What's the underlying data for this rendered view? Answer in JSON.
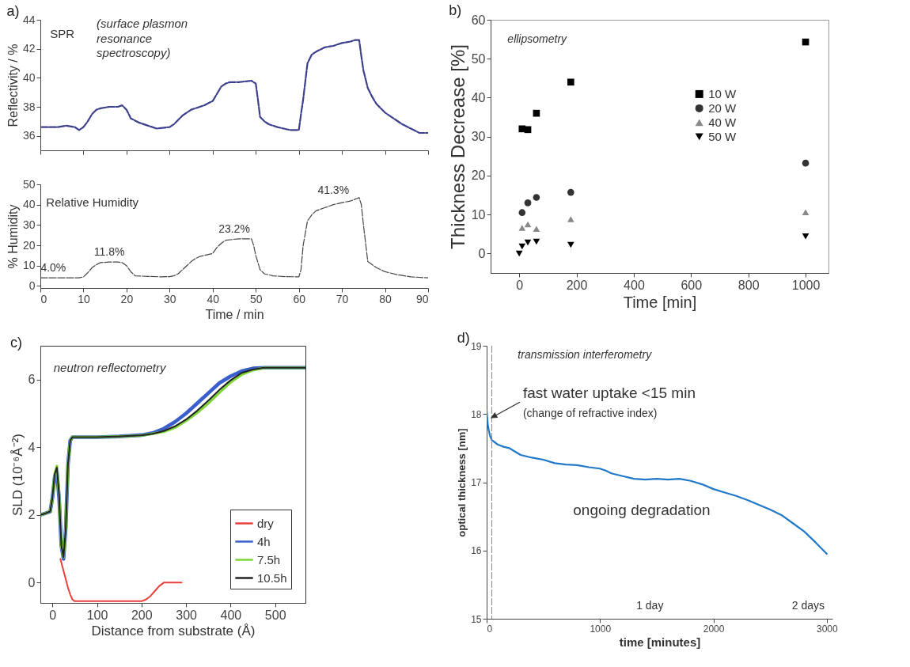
{
  "chart_data": [
    {
      "type": "line",
      "title": "a)",
      "ylabel": "Reflectivity / %",
      "xlim": [
        0,
        90
      ],
      "xticks": [
        0,
        10,
        20,
        30,
        40,
        50,
        60,
        70,
        80,
        90
      ],
      "ylim": [
        35,
        44
      ],
      "yticks": [
        36,
        38,
        40,
        42,
        44
      ],
      "tick_labels": "y",
      "annotations": [
        "SPR",
        "(surface plasmon resonance spectroscopy)"
      ],
      "series": [
        {
          "color": "#3c3f8c",
          "line_style": "dashed",
          "x": [
            0,
            2,
            4,
            6,
            8,
            9,
            10,
            11,
            12,
            13,
            14,
            16,
            18,
            19,
            20,
            21,
            23,
            25,
            27,
            30,
            31,
            32,
            33,
            35,
            36,
            38,
            40,
            41,
            42,
            43,
            44,
            46,
            49,
            50,
            50.5,
            51,
            52,
            53,
            55,
            58,
            60,
            60.5,
            61,
            62,
            63,
            64,
            66,
            68,
            70,
            72,
            73,
            74,
            74.5,
            75,
            76,
            77,
            78,
            80,
            82,
            84,
            86,
            88,
            90
          ],
          "values": [
            36.6,
            36.6,
            36.6,
            36.7,
            36.6,
            36.4,
            36.6,
            37,
            37.5,
            37.8,
            37.9,
            38,
            38,
            38.1,
            37.8,
            37.2,
            36.9,
            36.7,
            36.5,
            36.6,
            36.8,
            37.1,
            37.4,
            37.8,
            37.9,
            38.1,
            38.4,
            38.9,
            39.4,
            39.6,
            39.7,
            39.7,
            39.8,
            39.6,
            38.5,
            37.3,
            37.0,
            36.8,
            36.6,
            36.4,
            36.4,
            37.5,
            38.5,
            41,
            41.6,
            41.8,
            42.1,
            42.2,
            42.4,
            42.5,
            42.6,
            42.6,
            41.5,
            40.5,
            39.3,
            38.7,
            38.2,
            37.6,
            37.2,
            36.8,
            36.5,
            36.2,
            36.2
          ]
        }
      ]
    },
    {
      "type": "line",
      "xlabel": "Time / min",
      "ylabel": "% Humidity",
      "xlim": [
        0,
        90
      ],
      "xticks": [
        0,
        10,
        20,
        30,
        40,
        50,
        60,
        70,
        80,
        90
      ],
      "ylim": [
        -1,
        50
      ],
      "yticks": [
        0,
        10,
        20,
        30,
        40,
        50
      ],
      "annotations": [
        "Relative Humidity",
        {
          "text": "4.0%",
          "x": 3,
          "y": 4
        },
        {
          "text": "11.8%",
          "x": 16,
          "y": 11.8
        },
        {
          "text": "23.2%",
          "x": 45,
          "y": 23.2
        },
        {
          "text": "41.3%",
          "x": 68,
          "y": 41.3
        }
      ],
      "series": [
        {
          "color": "#444444",
          "line_style": "dashed",
          "x": [
            0,
            3,
            6,
            9,
            10,
            11,
            12,
            13,
            14,
            16,
            18,
            19,
            20,
            21,
            22,
            25,
            28,
            30,
            31,
            32,
            33,
            34,
            35,
            36,
            37,
            38,
            39,
            40,
            41,
            42,
            43,
            46,
            49,
            49.5,
            50,
            51,
            52,
            54,
            57,
            60,
            60.5,
            61,
            62,
            63,
            64,
            66,
            68,
            70,
            72,
            74,
            74.5,
            75,
            76,
            78,
            80,
            83,
            86,
            90
          ],
          "values": [
            4,
            4,
            4,
            4,
            4.5,
            6.5,
            9,
            10.5,
            11.5,
            11.8,
            11.8,
            11.5,
            10,
            7,
            5,
            4.7,
            4.5,
            4.6,
            5,
            6,
            8,
            10,
            12,
            13.5,
            14.5,
            15,
            15.5,
            16,
            19,
            21,
            22.5,
            23.2,
            23.2,
            20,
            15,
            8,
            6,
            5,
            4.6,
            4.5,
            8,
            20,
            32,
            35,
            37,
            38.5,
            40,
            41,
            41.8,
            43.5,
            40,
            30,
            12,
            9,
            7,
            5.5,
            4.5,
            4
          ]
        }
      ]
    },
    {
      "type": "scatter",
      "title": "b)",
      "xlabel": "Time [min]",
      "ylabel": "Thickness Decrease [%]",
      "xlim": [
        -100,
        1080
      ],
      "xticks": [
        0,
        200,
        400,
        600,
        800,
        1000
      ],
      "ylim": [
        -5,
        60
      ],
      "yticks": [
        0,
        10,
        20,
        30,
        40,
        50,
        60
      ],
      "legend": "top right",
      "annotations": [
        "ellipsometry"
      ],
      "series": [
        {
          "name": "10 W",
          "color": "#000000",
          "marker": "square",
          "x": [
            10,
            30,
            60,
            180,
            1000
          ],
          "values": [
            32,
            31.8,
            36,
            44,
            54.3
          ]
        },
        {
          "name": "20 W",
          "color": "#333333",
          "marker": "circle",
          "x": [
            10,
            30,
            60,
            180,
            1000
          ],
          "values": [
            10.5,
            13,
            14.4,
            15.7,
            23.2
          ]
        },
        {
          "name": "40 W",
          "color": "#888888",
          "marker": "triangle",
          "x": [
            10,
            30,
            60,
            180,
            1000
          ],
          "values": [
            6.6,
            7.5,
            6.3,
            8.8,
            10.6
          ]
        },
        {
          "name": "50 W",
          "color": "#000000",
          "marker": "triangle-down",
          "x": [
            0,
            10,
            30,
            60,
            180,
            1000
          ],
          "values": [
            0,
            1.8,
            2.8,
            3,
            2.2,
            4.4
          ]
        }
      ]
    },
    {
      "type": "line",
      "title": "c)",
      "xlabel": "Distance from substrate (Å)",
      "ylabel": "SLD (10⁻⁶Å⁻²)",
      "xlim": [
        -27,
        568
      ],
      "xticks": [
        0,
        100,
        200,
        300,
        400,
        500
      ],
      "ylim": [
        -0.6,
        7
      ],
      "yticks": [
        0,
        2,
        4,
        6
      ],
      "legend": "bottom right",
      "annotations": [
        "neutron reflectometry"
      ],
      "series": [
        {
          "name": "dry",
          "color": "#e8413c",
          "x": [
            18,
            22,
            26,
            30,
            35,
            40,
            45,
            50,
            100,
            150,
            200,
            210,
            220,
            230,
            240,
            250,
            260,
            290
          ],
          "values": [
            0.7,
            0.5,
            0.3,
            0.1,
            -0.15,
            -0.35,
            -0.5,
            -0.55,
            -0.55,
            -0.55,
            -0.55,
            -0.5,
            -0.4,
            -0.25,
            -0.1,
            0,
            0,
            0
          ]
        },
        {
          "name": "4h",
          "color": "#3a5fcd",
          "x": [
            -27,
            -15,
            -5,
            0,
            5,
            10,
            15,
            20,
            25,
            30,
            35,
            40,
            45,
            60,
            100,
            150,
            200,
            225,
            250,
            275,
            300,
            325,
            350,
            375,
            400,
            425,
            450,
            475,
            500,
            568
          ],
          "values": [
            2.0,
            2.05,
            2.1,
            2.5,
            3.1,
            3.3,
            2.5,
            1.1,
            0.7,
            1.6,
            3.5,
            4.2,
            4.3,
            4.3,
            4.3,
            4.32,
            4.36,
            4.42,
            4.55,
            4.75,
            5.0,
            5.3,
            5.6,
            5.9,
            6.1,
            6.25,
            6.33,
            6.35,
            6.35,
            6.35
          ]
        },
        {
          "name": "7.5h",
          "color": "#7fd63a",
          "x": [
            -27,
            -15,
            -5,
            0,
            5,
            10,
            15,
            20,
            25,
            30,
            35,
            40,
            45,
            60,
            100,
            150,
            200,
            225,
            250,
            275,
            300,
            325,
            350,
            375,
            400,
            425,
            450,
            475,
            500,
            568
          ],
          "values": [
            2.0,
            2.05,
            2.1,
            2.5,
            3.2,
            3.45,
            2.6,
            1.1,
            0.75,
            1.6,
            3.5,
            4.2,
            4.3,
            4.3,
            4.3,
            4.32,
            4.35,
            4.4,
            4.46,
            4.58,
            4.78,
            5.02,
            5.3,
            5.62,
            5.92,
            6.15,
            6.28,
            6.35,
            6.35,
            6.35
          ]
        },
        {
          "name": "10.5h",
          "color": "#222222",
          "x": [
            -27,
            -15,
            -5,
            0,
            5,
            10,
            15,
            20,
            25,
            30,
            35,
            40,
            45,
            60,
            100,
            150,
            200,
            225,
            250,
            275,
            300,
            325,
            350,
            375,
            400,
            425,
            450,
            475,
            500,
            568
          ],
          "values": [
            2.0,
            2.05,
            2.1,
            2.5,
            3.2,
            3.4,
            2.6,
            1.1,
            0.75,
            1.6,
            3.5,
            4.2,
            4.3,
            4.3,
            4.3,
            4.32,
            4.35,
            4.4,
            4.48,
            4.62,
            4.82,
            5.08,
            5.38,
            5.7,
            5.98,
            6.2,
            6.3,
            6.35,
            6.35,
            6.35
          ]
        }
      ]
    },
    {
      "type": "line",
      "title": "d)",
      "xlabel": "time [minutes]",
      "ylabel": "optical thickness [nm]",
      "xlim": [
        0,
        3050
      ],
      "xticks": [
        0,
        1000,
        2000,
        3000
      ],
      "ylim": [
        15,
        19
      ],
      "yticks": [
        15,
        16,
        17,
        18,
        19
      ],
      "annotations": [
        "transmission interferometry",
        "fast water uptake <15 min",
        "(change of refractive index)",
        "ongoing degradation",
        "1 day",
        "2 days"
      ],
      "ref_lines": [
        {
          "axis": "x",
          "value": 45,
          "color": "#888888",
          "line_style": "dashed"
        }
      ],
      "series": [
        {
          "color": "#1f78c8",
          "x": [
            0,
            5,
            10,
            20,
            30,
            45,
            60,
            100,
            150,
            200,
            250,
            300,
            400,
            500,
            600,
            700,
            800,
            900,
            1000,
            1050,
            1100,
            1200,
            1300,
            1400,
            1500,
            1600,
            1700,
            1800,
            1900,
            2000,
            2100,
            2200,
            2300,
            2400,
            2500,
            2600,
            2700,
            2800,
            2900,
            3000
          ],
          "values": [
            18.05,
            17.95,
            17.85,
            17.75,
            17.68,
            17.62,
            17.6,
            17.55,
            17.52,
            17.5,
            17.45,
            17.4,
            17.36,
            17.33,
            17.28,
            17.26,
            17.25,
            17.22,
            17.2,
            17.17,
            17.13,
            17.09,
            17.05,
            17.04,
            17.05,
            17.04,
            17.05,
            17.02,
            16.97,
            16.9,
            16.85,
            16.8,
            16.74,
            16.67,
            16.6,
            16.52,
            16.4,
            16.28,
            16.12,
            15.95
          ]
        }
      ]
    }
  ]
}
